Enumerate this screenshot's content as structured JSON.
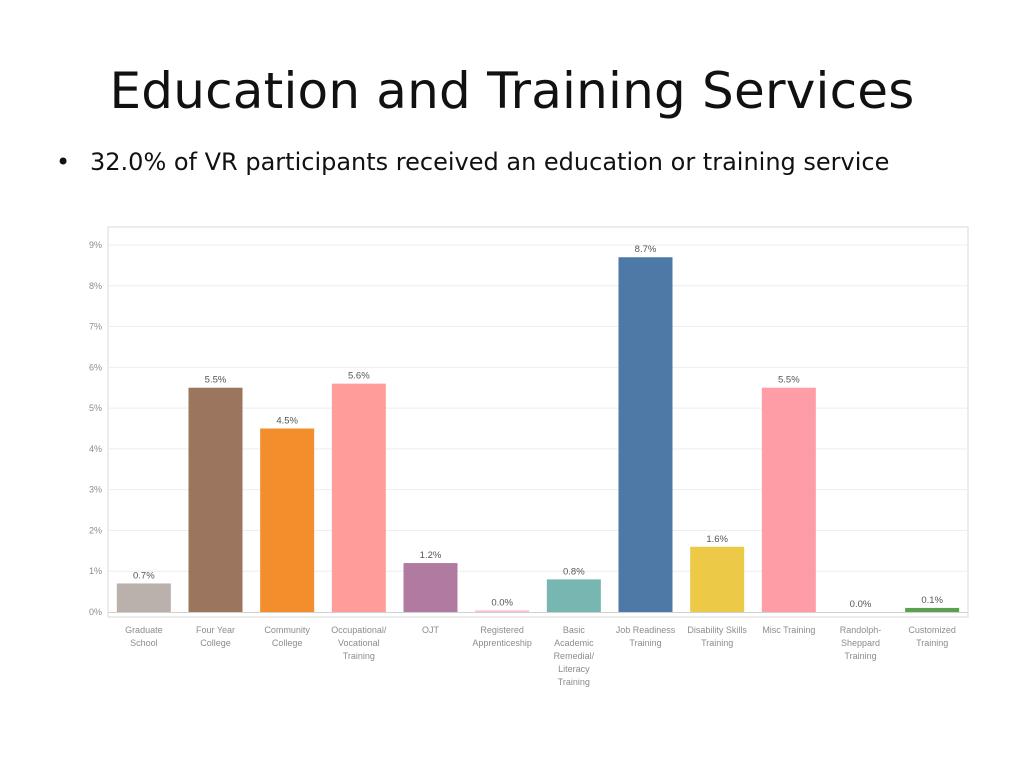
{
  "slide": {
    "title": "Education and Training Services",
    "bullet_marker": "•",
    "bullet": "32.0% of  VR participants received an education or training service"
  },
  "chart_data": {
    "type": "bar",
    "title": "",
    "xlabel": "",
    "ylabel": "",
    "ylim": [
      0,
      9
    ],
    "yticks": [
      "0%",
      "1%",
      "2%",
      "3%",
      "4%",
      "5%",
      "6%",
      "7%",
      "8%",
      "9%"
    ],
    "grid": true,
    "legend": "none",
    "categories": [
      [
        "Graduate",
        "School"
      ],
      [
        "Four Year",
        "College"
      ],
      [
        "Community",
        "College"
      ],
      [
        "Occupational/",
        "Vocational",
        "Training"
      ],
      [
        "OJT"
      ],
      [
        "Registered",
        "Apprenticeship"
      ],
      [
        "Basic",
        "Academic",
        "Remedial/",
        "Literacy",
        "Training"
      ],
      [
        "Job Readiness",
        "Training"
      ],
      [
        "Disability Skills",
        "Training"
      ],
      [
        "Misc Training"
      ],
      [
        "Randolph-",
        "Sheppard",
        "Training"
      ],
      [
        "Customized",
        "Training"
      ]
    ],
    "values": [
      0.7,
      5.5,
      4.5,
      5.6,
      1.2,
      0.04,
      0.8,
      8.7,
      1.6,
      5.5,
      0.0,
      0.1
    ],
    "data_labels": [
      "0.7%",
      "5.5%",
      "4.5%",
      "5.6%",
      "1.2%",
      "0.0%",
      "0.8%",
      "8.7%",
      "1.6%",
      "5.5%",
      "0.0%",
      "0.1%"
    ],
    "colors": [
      "#bab0ac",
      "#9c755f",
      "#f28e2b",
      "#ff9d9a",
      "#b07aa1",
      "#fabfd2",
      "#76b7b2",
      "#4e79a7",
      "#edc948",
      "#ff9da7",
      "#d3d3d3",
      "#59a14f"
    ]
  }
}
